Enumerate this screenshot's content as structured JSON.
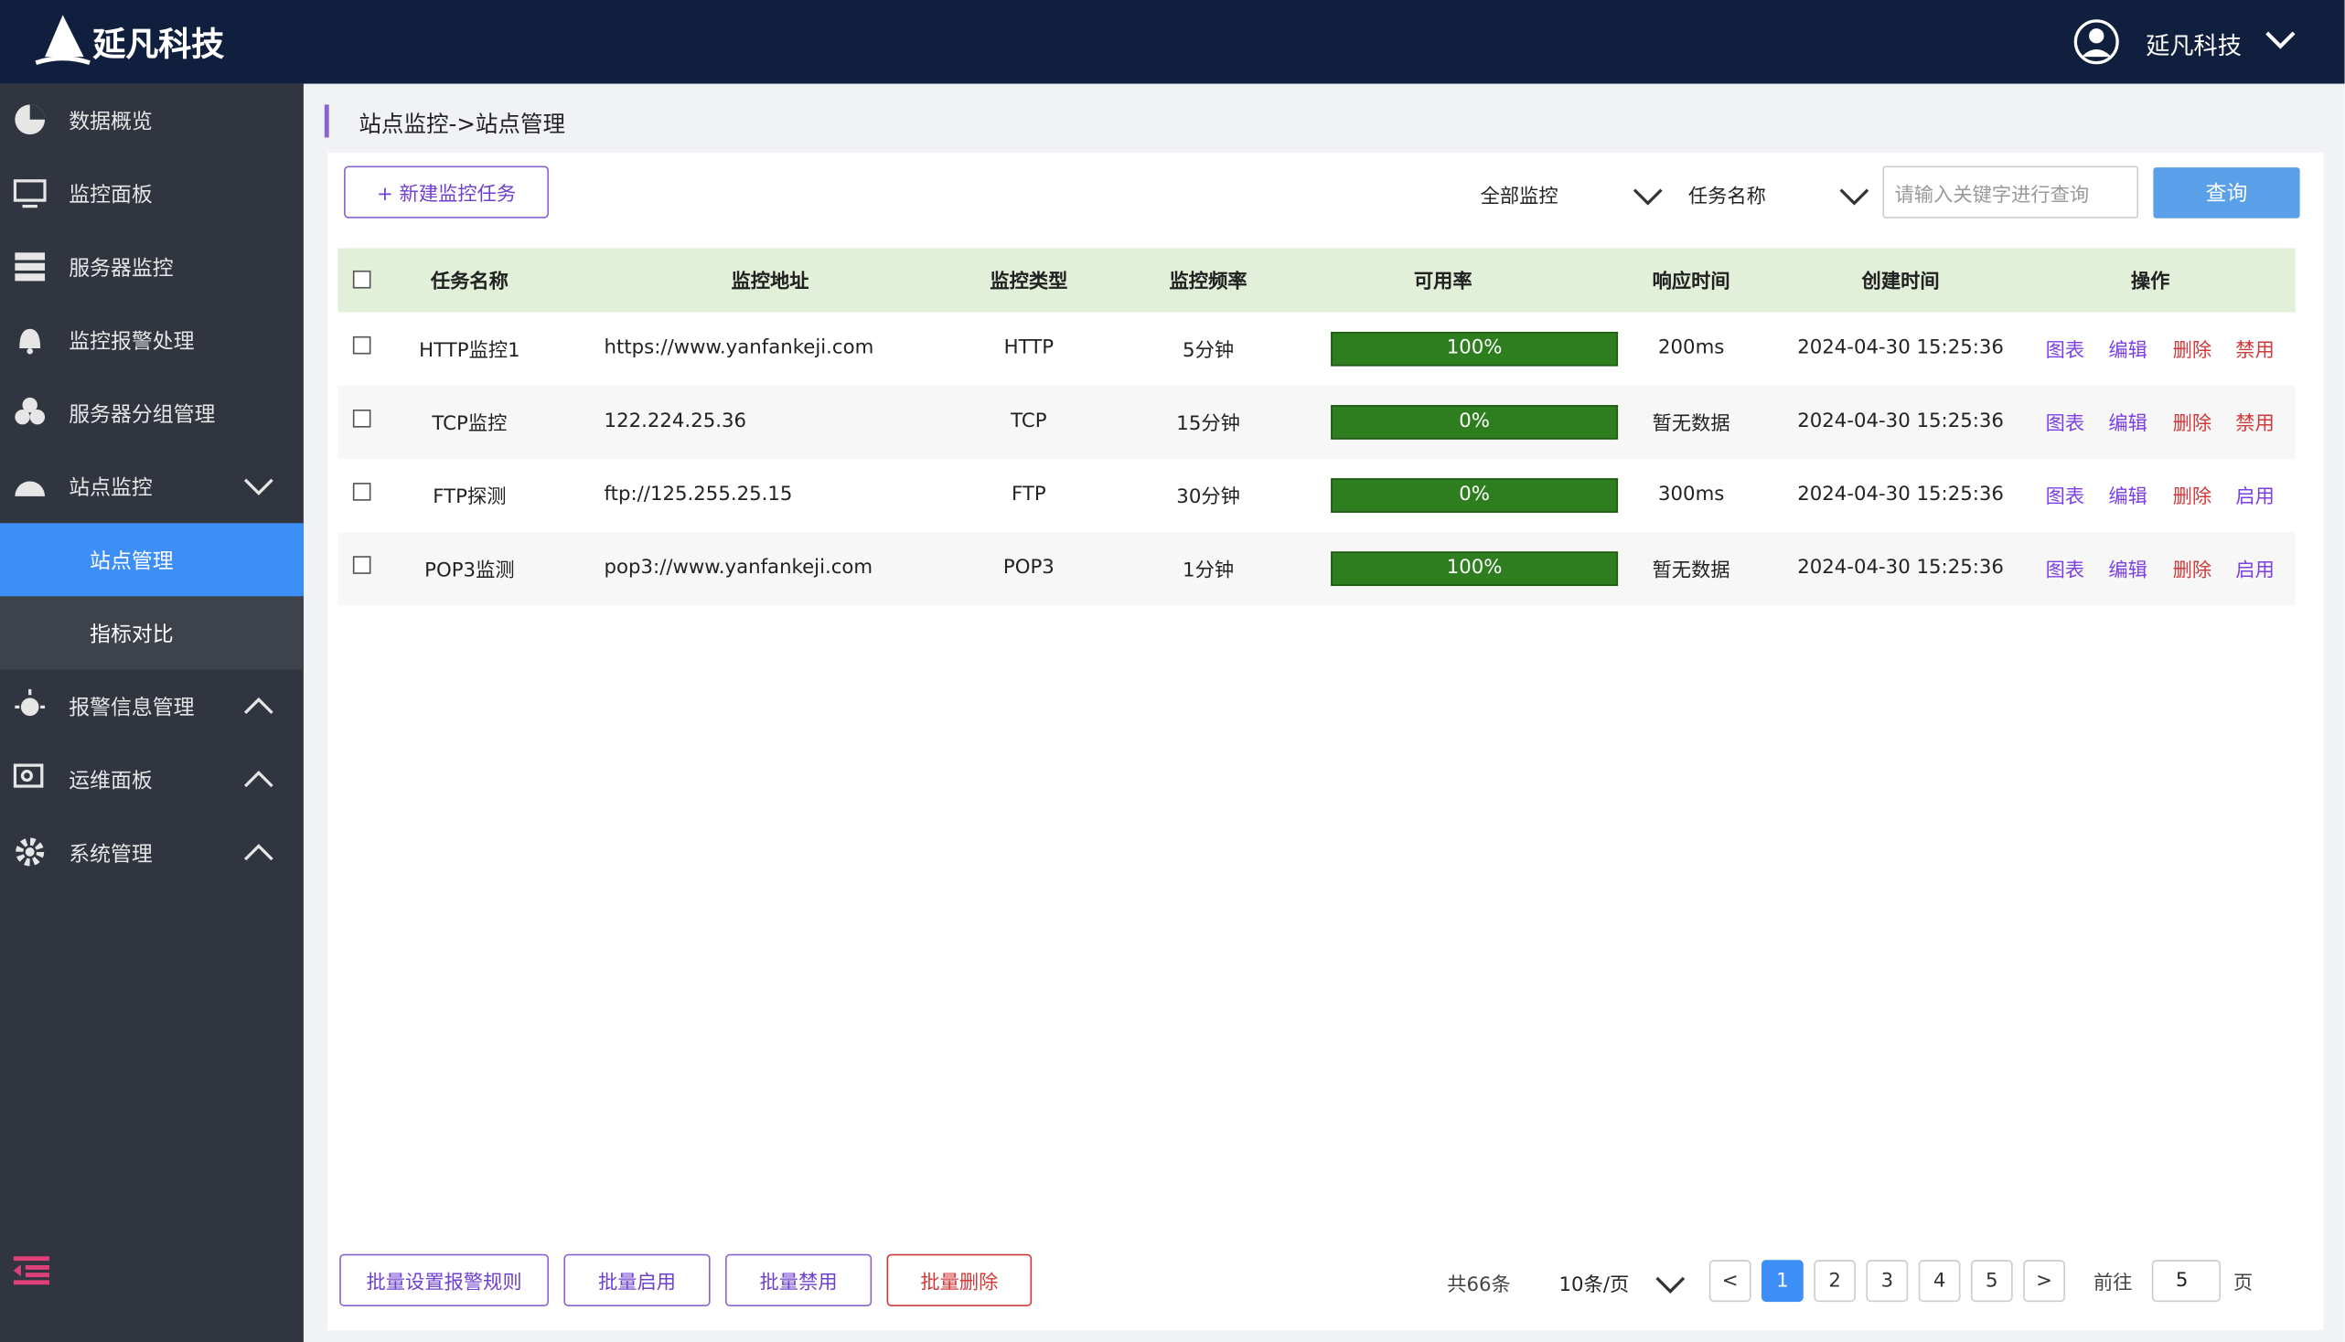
{
  "header": {
    "brand": "延凡科技",
    "user": "延凡科技"
  },
  "sidebar": {
    "items": [
      {
        "label": "数据概览"
      },
      {
        "label": "监控面板"
      },
      {
        "label": "服务器监控"
      },
      {
        "label": "监控报警处理"
      },
      {
        "label": "服务器分组管理"
      },
      {
        "label": "站点监控",
        "children": [
          "站点管理",
          "指标对比"
        ]
      },
      {
        "label": "报警信息管理"
      },
      {
        "label": "运维面板"
      },
      {
        "label": "系统管理"
      }
    ]
  },
  "breadcrumb": "站点监控->站点管理",
  "toolbar": {
    "new_button": "+ 新建监控任务",
    "filter_type": "全部监控",
    "filter_field": "任务名称",
    "search_placeholder": "请输入关键字进行查询",
    "search_button": "查询"
  },
  "table": {
    "headers": [
      "任务名称",
      "监控地址",
      "监控类型",
      "监控频率",
      "可用率",
      "响应时间",
      "创建时间",
      "操作"
    ],
    "rows": [
      [
        "HTTP监控1",
        "https://www.yanfankeji.com",
        "HTTP",
        "5分钟",
        "100%",
        "200ms",
        "2024-04-30 15:25:36",
        [
          "图表",
          "编辑",
          "删除",
          "禁用"
        ]
      ],
      [
        "TCP监控",
        "122.224.25.36",
        "TCP",
        "15分钟",
        "0%",
        "暂无数据",
        "2024-04-30 15:25:36",
        [
          "图表",
          "编辑",
          "删除",
          "禁用"
        ]
      ],
      [
        "FTP探测",
        "ftp://125.255.25.15",
        "FTP",
        "30分钟",
        "0%",
        "300ms",
        "2024-04-30 15:25:36",
        [
          "图表",
          "编辑",
          "删除",
          "启用"
        ]
      ],
      [
        "POP3监测",
        "pop3://www.yanfankeji.com",
        "POP3",
        "1分钟",
        "100%",
        "暂无数据",
        "2024-04-30 15:25:36",
        [
          "图表",
          "编辑",
          "删除",
          "启用"
        ]
      ]
    ]
  },
  "footer": {
    "batch_buttons": [
      "批量设置报警规则",
      "批量启用",
      "批量禁用",
      "批量删除"
    ],
    "total": "共66条",
    "page_size": "10条/页",
    "pages": [
      "<",
      "1",
      "2",
      "3",
      "4",
      "5",
      ">"
    ],
    "goto_label": "前往",
    "goto_value": "5",
    "goto_unit": "页"
  }
}
